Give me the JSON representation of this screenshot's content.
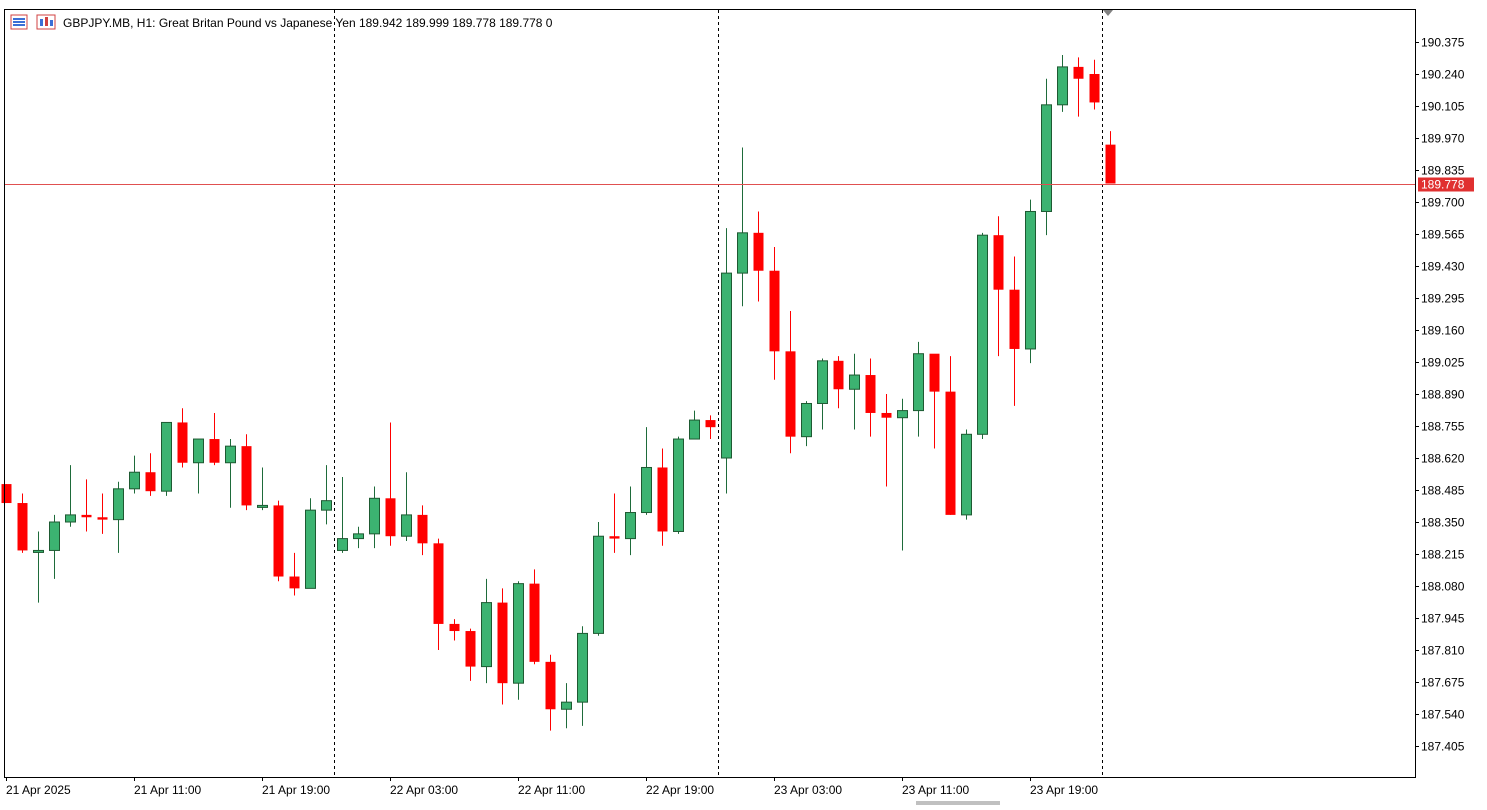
{
  "header": {
    "symbol_line": "GBPJPY.MB, H1:  Great Britan Pound vs Japanese Yen  189.942 189.999 189.778 189.778  0",
    "icons": [
      "trade-panel-icon",
      "chart-mode-icon"
    ]
  },
  "colors": {
    "bull": "#3cb371",
    "bear": "#ff0000",
    "price_line": "#e05050",
    "price_tag_bg": "#e03030",
    "axis": "#000000",
    "separator": "#000000"
  },
  "chart_data": {
    "type": "candlestick",
    "timeframe": "H1",
    "ylim": [
      187.27,
      190.47
    ],
    "y_ticks": [
      "190.375",
      "190.240",
      "190.105",
      "189.970",
      "189.835",
      "189.700",
      "189.565",
      "189.430",
      "189.295",
      "189.160",
      "189.025",
      "188.890",
      "188.755",
      "188.620",
      "188.485",
      "188.350",
      "188.215",
      "188.080",
      "187.945",
      "187.810",
      "187.675",
      "187.540",
      "187.405"
    ],
    "x_labels": [
      {
        "bar": 0,
        "text": "21 Apr 2025"
      },
      {
        "bar": 8,
        "text": "21 Apr 11:00"
      },
      {
        "bar": 16,
        "text": "21 Apr 19:00"
      },
      {
        "bar": 24,
        "text": "22 Apr 03:00"
      },
      {
        "bar": 32,
        "text": "22 Apr 11:00"
      },
      {
        "bar": 40,
        "text": "22 Apr 19:00"
      },
      {
        "bar": 48,
        "text": "23 Apr 03:00"
      },
      {
        "bar": 56,
        "text": "23 Apr 11:00"
      },
      {
        "bar": 64,
        "text": "23 Apr 19:00"
      }
    ],
    "day_separators_after_bar": [
      20.5,
      44.5,
      68.5
    ],
    "current_price": "189.778",
    "candles": [
      {
        "o": 188.51,
        "h": 188.51,
        "l": 188.43,
        "c": 188.43
      },
      {
        "o": 188.43,
        "h": 188.47,
        "l": 188.22,
        "c": 188.23
      },
      {
        "o": 188.23,
        "h": 188.31,
        "l": 188.01,
        "c": 188.23
      },
      {
        "o": 188.23,
        "h": 188.38,
        "l": 188.11,
        "c": 188.35
      },
      {
        "o": 188.35,
        "h": 188.59,
        "l": 188.33,
        "c": 188.38
      },
      {
        "o": 188.38,
        "h": 188.53,
        "l": 188.31,
        "c": 188.37
      },
      {
        "o": 188.37,
        "h": 188.47,
        "l": 188.3,
        "c": 188.36
      },
      {
        "o": 188.36,
        "h": 188.52,
        "l": 188.22,
        "c": 188.49
      },
      {
        "o": 188.49,
        "h": 188.63,
        "l": 188.47,
        "c": 188.56
      },
      {
        "o": 188.56,
        "h": 188.64,
        "l": 188.46,
        "c": 188.48
      },
      {
        "o": 188.48,
        "h": 188.77,
        "l": 188.46,
        "c": 188.77
      },
      {
        "o": 188.77,
        "h": 188.83,
        "l": 188.58,
        "c": 188.6
      },
      {
        "o": 188.6,
        "h": 188.7,
        "l": 188.47,
        "c": 188.7
      },
      {
        "o": 188.7,
        "h": 188.81,
        "l": 188.59,
        "c": 188.6
      },
      {
        "o": 188.6,
        "h": 188.7,
        "l": 188.41,
        "c": 188.67
      },
      {
        "o": 188.67,
        "h": 188.72,
        "l": 188.4,
        "c": 188.42
      },
      {
        "o": 188.42,
        "h": 188.58,
        "l": 188.4,
        "c": 188.42
      },
      {
        "o": 188.42,
        "h": 188.44,
        "l": 188.1,
        "c": 188.12
      },
      {
        "o": 188.12,
        "h": 188.22,
        "l": 188.04,
        "c": 188.07
      },
      {
        "o": 188.07,
        "h": 188.45,
        "l": 188.07,
        "c": 188.4
      },
      {
        "o": 188.4,
        "h": 188.59,
        "l": 188.34,
        "c": 188.44
      },
      {
        "o": 188.23,
        "h": 188.54,
        "l": 188.22,
        "c": 188.28
      },
      {
        "o": 188.28,
        "h": 188.33,
        "l": 188.24,
        "c": 188.3
      },
      {
        "o": 188.3,
        "h": 188.5,
        "l": 188.24,
        "c": 188.45
      },
      {
        "o": 188.45,
        "h": 188.77,
        "l": 188.25,
        "c": 188.29
      },
      {
        "o": 188.29,
        "h": 188.56,
        "l": 188.27,
        "c": 188.38
      },
      {
        "o": 188.38,
        "h": 188.42,
        "l": 188.21,
        "c": 188.26
      },
      {
        "o": 188.26,
        "h": 188.28,
        "l": 187.81,
        "c": 187.92
      },
      {
        "o": 187.92,
        "h": 187.94,
        "l": 187.85,
        "c": 187.89
      },
      {
        "o": 187.89,
        "h": 187.9,
        "l": 187.68,
        "c": 187.74
      },
      {
        "o": 187.74,
        "h": 188.11,
        "l": 187.67,
        "c": 188.01
      },
      {
        "o": 188.01,
        "h": 188.07,
        "l": 187.58,
        "c": 187.67
      },
      {
        "o": 187.67,
        "h": 188.1,
        "l": 187.6,
        "c": 188.09
      },
      {
        "o": 188.09,
        "h": 188.15,
        "l": 187.75,
        "c": 187.76
      },
      {
        "o": 187.76,
        "h": 187.79,
        "l": 187.47,
        "c": 187.56
      },
      {
        "o": 187.56,
        "h": 187.67,
        "l": 187.48,
        "c": 187.59
      },
      {
        "o": 187.59,
        "h": 187.91,
        "l": 187.49,
        "c": 187.88
      },
      {
        "o": 187.88,
        "h": 188.35,
        "l": 187.87,
        "c": 188.29
      },
      {
        "o": 188.29,
        "h": 188.47,
        "l": 188.22,
        "c": 188.28
      },
      {
        "o": 188.28,
        "h": 188.5,
        "l": 188.21,
        "c": 188.39
      },
      {
        "o": 188.39,
        "h": 188.75,
        "l": 188.38,
        "c": 188.58
      },
      {
        "o": 188.58,
        "h": 188.66,
        "l": 188.25,
        "c": 188.31
      },
      {
        "o": 188.31,
        "h": 188.71,
        "l": 188.3,
        "c": 188.7
      },
      {
        "o": 188.7,
        "h": 188.82,
        "l": 188.7,
        "c": 188.78
      },
      {
        "o": 188.78,
        "h": 188.8,
        "l": 188.7,
        "c": 188.75
      },
      {
        "o": 188.62,
        "h": 189.59,
        "l": 188.47,
        "c": 189.4
      },
      {
        "o": 189.4,
        "h": 189.93,
        "l": 189.26,
        "c": 189.57
      },
      {
        "o": 189.57,
        "h": 189.66,
        "l": 189.28,
        "c": 189.41
      },
      {
        "o": 189.41,
        "h": 189.51,
        "l": 188.95,
        "c": 189.07
      },
      {
        "o": 189.07,
        "h": 189.24,
        "l": 188.64,
        "c": 188.71
      },
      {
        "o": 188.71,
        "h": 188.86,
        "l": 188.67,
        "c": 188.85
      },
      {
        "o": 188.85,
        "h": 189.04,
        "l": 188.74,
        "c": 189.03
      },
      {
        "o": 189.03,
        "h": 189.05,
        "l": 188.83,
        "c": 188.91
      },
      {
        "o": 188.91,
        "h": 189.06,
        "l": 188.74,
        "c": 188.97
      },
      {
        "o": 188.97,
        "h": 189.04,
        "l": 188.71,
        "c": 188.81
      },
      {
        "o": 188.81,
        "h": 188.89,
        "l": 188.5,
        "c": 188.79
      },
      {
        "o": 188.79,
        "h": 188.87,
        "l": 188.23,
        "c": 188.82
      },
      {
        "o": 188.82,
        "h": 189.11,
        "l": 188.71,
        "c": 189.06
      },
      {
        "o": 189.06,
        "h": 189.05,
        "l": 188.66,
        "c": 188.9
      },
      {
        "o": 188.9,
        "h": 189.05,
        "l": 188.38,
        "c": 188.38
      },
      {
        "o": 188.38,
        "h": 188.74,
        "l": 188.36,
        "c": 188.72
      },
      {
        "o": 188.72,
        "h": 189.57,
        "l": 188.7,
        "c": 189.56
      },
      {
        "o": 189.56,
        "h": 189.64,
        "l": 189.05,
        "c": 189.33
      },
      {
        "o": 189.33,
        "h": 189.47,
        "l": 188.84,
        "c": 189.08
      },
      {
        "o": 189.08,
        "h": 189.71,
        "l": 189.02,
        "c": 189.66
      },
      {
        "o": 189.66,
        "h": 190.22,
        "l": 189.56,
        "c": 190.11
      },
      {
        "o": 190.11,
        "h": 190.32,
        "l": 190.08,
        "c": 190.27
      },
      {
        "o": 190.27,
        "h": 190.31,
        "l": 190.06,
        "c": 190.22
      },
      {
        "o": 190.24,
        "h": 190.3,
        "l": 190.09,
        "c": 190.12
      },
      {
        "o": 189.942,
        "h": 189.999,
        "l": 189.778,
        "c": 189.778
      }
    ]
  }
}
